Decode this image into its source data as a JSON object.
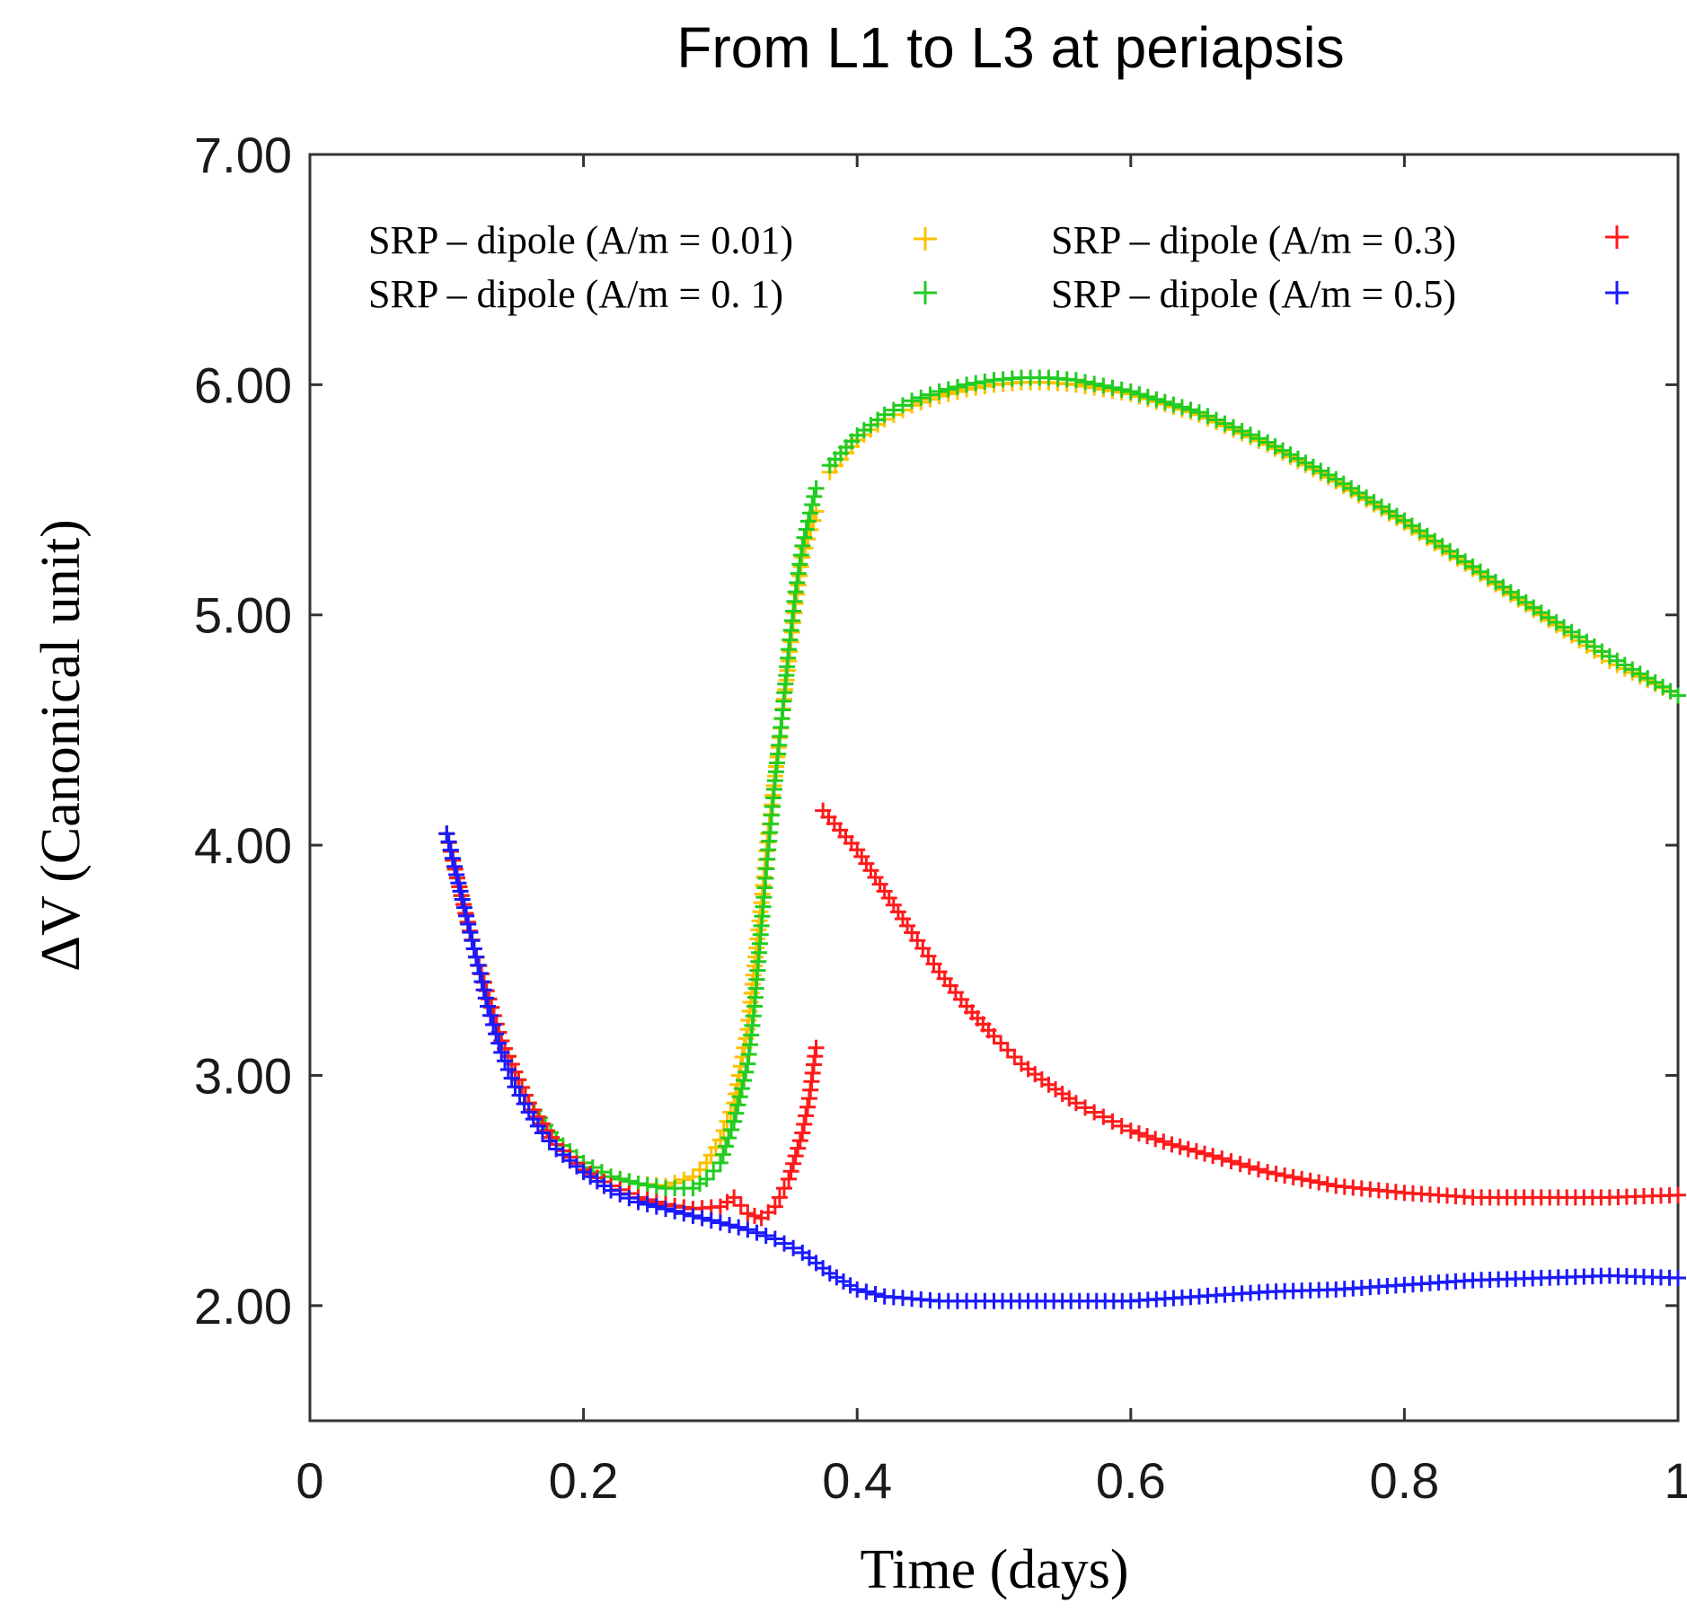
{
  "chart_data": {
    "type": "scatter",
    "title": "From L1 to L3 at periapsis",
    "xlabel": "Time (days)",
    "ylabel": "ΔV (Canonical unit)",
    "xlim": [
      0,
      1
    ],
    "ylim": [
      1.5,
      7.0
    ],
    "xticks": [
      0,
      0.2,
      0.4,
      0.6,
      0.8,
      1
    ],
    "xtick_labels": [
      "0",
      "0.2",
      "0.4",
      "0.6",
      "0.8",
      "1"
    ],
    "yticks": [
      2,
      3,
      4,
      5,
      6,
      7
    ],
    "ytick_labels": [
      "2.00",
      "3.00",
      "4.00",
      "5.00",
      "6.00",
      "7.00"
    ],
    "grid": false,
    "marker": "+",
    "legend_position": "top",
    "series": [
      {
        "name": "SRP – dipole (A/m = 0.01)",
        "color": "#ffc000",
        "segments": [
          {
            "x": [
              0.1,
              0.12,
              0.14,
              0.16,
              0.18,
              0.2,
              0.22,
              0.24,
              0.26,
              0.28,
              0.29,
              0.3,
              0.31,
              0.32,
              0.33,
              0.335,
              0.34,
              0.345,
              0.35,
              0.355,
              0.36,
              0.37
            ],
            "y": [
              4.05,
              3.55,
              3.15,
              2.88,
              2.72,
              2.62,
              2.56,
              2.53,
              2.52,
              2.56,
              2.62,
              2.72,
              2.88,
              3.2,
              3.75,
              4.05,
              4.3,
              4.55,
              4.8,
              5.05,
              5.25,
              5.45
            ]
          },
          {
            "x": [
              0.38,
              0.4,
              0.42,
              0.44,
              0.46,
              0.48,
              0.5,
              0.52,
              0.54,
              0.56,
              0.6,
              0.65,
              0.7,
              0.75,
              0.8,
              0.85,
              0.9,
              0.95,
              1.0
            ],
            "y": [
              5.62,
              5.76,
              5.85,
              5.91,
              5.95,
              5.98,
              6.0,
              6.01,
              6.01,
              6.0,
              5.96,
              5.87,
              5.74,
              5.58,
              5.4,
              5.2,
              5.0,
              4.8,
              4.65
            ]
          }
        ]
      },
      {
        "name": "SRP – dipole (A/m = 0. 1)",
        "color": "#22cc22",
        "segments": [
          {
            "x": [
              0.1,
              0.12,
              0.14,
              0.16,
              0.18,
              0.2,
              0.22,
              0.24,
              0.26,
              0.28,
              0.29,
              0.3,
              0.31,
              0.32,
              0.325,
              0.33,
              0.335,
              0.34,
              0.345,
              0.35,
              0.355,
              0.36,
              0.37
            ],
            "y": [
              4.05,
              3.55,
              3.15,
              2.88,
              2.72,
              2.62,
              2.56,
              2.53,
              2.51,
              2.51,
              2.55,
              2.62,
              2.8,
              3.05,
              3.3,
              3.65,
              3.98,
              4.28,
              4.55,
              4.85,
              5.1,
              5.3,
              5.55
            ]
          },
          {
            "x": [
              0.38,
              0.4,
              0.42,
              0.44,
              0.46,
              0.48,
              0.5,
              0.52,
              0.54,
              0.56,
              0.6,
              0.65,
              0.7,
              0.75,
              0.8,
              0.85,
              0.9,
              0.95,
              1.0
            ],
            "y": [
              5.65,
              5.78,
              5.87,
              5.93,
              5.97,
              6.0,
              6.02,
              6.03,
              6.03,
              6.02,
              5.97,
              5.88,
              5.75,
              5.59,
              5.41,
              5.21,
              5.01,
              4.82,
              4.65
            ]
          }
        ]
      },
      {
        "name": "SRP – dipole (A/m = 0.3)",
        "color": "#ff1a1a",
        "segments": [
          {
            "x": [
              0.1,
              0.12,
              0.14,
              0.16,
              0.18,
              0.2,
              0.22,
              0.24,
              0.26,
              0.28,
              0.3,
              0.31,
              0.32,
              0.33,
              0.34,
              0.35,
              0.355,
              0.36,
              0.365,
              0.37
            ],
            "y": [
              4.05,
              3.55,
              3.15,
              2.88,
              2.7,
              2.59,
              2.52,
              2.47,
              2.44,
              2.42,
              2.43,
              2.47,
              2.4,
              2.38,
              2.43,
              2.55,
              2.65,
              2.75,
              2.9,
              3.12
            ]
          },
          {
            "x": [
              0.375,
              0.4,
              0.42,
              0.44,
              0.46,
              0.48,
              0.5,
              0.52,
              0.54,
              0.56,
              0.58,
              0.6,
              0.63,
              0.66,
              0.7,
              0.75,
              0.8,
              0.85,
              0.9,
              0.95,
              1.0
            ],
            "y": [
              4.15,
              3.98,
              3.8,
              3.62,
              3.45,
              3.3,
              3.17,
              3.05,
              2.96,
              2.88,
              2.82,
              2.76,
              2.7,
              2.65,
              2.58,
              2.52,
              2.49,
              2.47,
              2.47,
              2.47,
              2.48
            ]
          }
        ]
      },
      {
        "name": "SRP – dipole (A/m = 0.5)",
        "color": "#1a1aff",
        "segments": [
          {
            "x": [
              0.1,
              0.11,
              0.12,
              0.13,
              0.14,
              0.15,
              0.16,
              0.17,
              0.18,
              0.2,
              0.22,
              0.24,
              0.26,
              0.28,
              0.3,
              0.32,
              0.34,
              0.36,
              0.38,
              0.4,
              0.42,
              0.44,
              0.46,
              0.48,
              0.5,
              0.55,
              0.6,
              0.65,
              0.7,
              0.75,
              0.8,
              0.85,
              0.9,
              0.95,
              1.0
            ],
            "y": [
              4.05,
              3.8,
              3.55,
              3.3,
              3.1,
              2.95,
              2.84,
              2.75,
              2.68,
              2.58,
              2.5,
              2.45,
              2.42,
              2.39,
              2.36,
              2.33,
              2.29,
              2.23,
              2.14,
              2.07,
              2.04,
              2.03,
              2.02,
              2.02,
              2.02,
              2.02,
              2.02,
              2.04,
              2.06,
              2.07,
              2.09,
              2.11,
              2.12,
              2.13,
              2.12
            ]
          }
        ]
      }
    ]
  }
}
